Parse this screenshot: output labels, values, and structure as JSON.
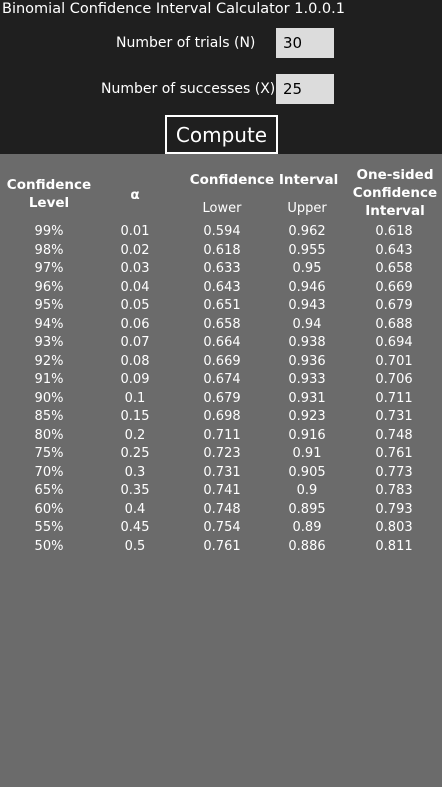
{
  "app": {
    "title": "Binomial Confidence Interval Calculator 1.0.0.1"
  },
  "form": {
    "trials_label": "Number of trials (N)",
    "trials_value": "30",
    "successes_label": "Number of successes (X)",
    "successes_value": "25",
    "compute_label": "Compute"
  },
  "table": {
    "headers": {
      "confidence_level": "Confidence Level",
      "alpha": "α",
      "confidence_interval": "Confidence Interval",
      "lower": "Lower",
      "upper": "Upper",
      "one_sided": "One-sided Confidence Interval"
    },
    "rows": [
      {
        "level": "99%",
        "alpha": "0.01",
        "lower": "0.594",
        "upper": "0.962",
        "one_sided": "0.618"
      },
      {
        "level": "98%",
        "alpha": "0.02",
        "lower": "0.618",
        "upper": "0.955",
        "one_sided": "0.643"
      },
      {
        "level": "97%",
        "alpha": "0.03",
        "lower": "0.633",
        "upper": "0.95",
        "one_sided": "0.658"
      },
      {
        "level": "96%",
        "alpha": "0.04",
        "lower": "0.643",
        "upper": "0.946",
        "one_sided": "0.669"
      },
      {
        "level": "95%",
        "alpha": "0.05",
        "lower": "0.651",
        "upper": "0.943",
        "one_sided": "0.679"
      },
      {
        "level": "94%",
        "alpha": "0.06",
        "lower": "0.658",
        "upper": "0.94",
        "one_sided": "0.688"
      },
      {
        "level": "93%",
        "alpha": "0.07",
        "lower": "0.664",
        "upper": "0.938",
        "one_sided": "0.694"
      },
      {
        "level": "92%",
        "alpha": "0.08",
        "lower": "0.669",
        "upper": "0.936",
        "one_sided": "0.701"
      },
      {
        "level": "91%",
        "alpha": "0.09",
        "lower": "0.674",
        "upper": "0.933",
        "one_sided": "0.706"
      },
      {
        "level": "90%",
        "alpha": "0.1",
        "lower": "0.679",
        "upper": "0.931",
        "one_sided": "0.711"
      },
      {
        "level": "85%",
        "alpha": "0.15",
        "lower": "0.698",
        "upper": "0.923",
        "one_sided": "0.731"
      },
      {
        "level": "80%",
        "alpha": "0.2",
        "lower": "0.711",
        "upper": "0.916",
        "one_sided": "0.748"
      },
      {
        "level": "75%",
        "alpha": "0.25",
        "lower": "0.723",
        "upper": "0.91",
        "one_sided": "0.761"
      },
      {
        "level": "70%",
        "alpha": "0.3",
        "lower": "0.731",
        "upper": "0.905",
        "one_sided": "0.773"
      },
      {
        "level": "65%",
        "alpha": "0.35",
        "lower": "0.741",
        "upper": "0.9",
        "one_sided": "0.783"
      },
      {
        "level": "60%",
        "alpha": "0.4",
        "lower": "0.748",
        "upper": "0.895",
        "one_sided": "0.793"
      },
      {
        "level": "55%",
        "alpha": "0.45",
        "lower": "0.754",
        "upper": "0.89",
        "one_sided": "0.803"
      },
      {
        "level": "50%",
        "alpha": "0.5",
        "lower": "0.761",
        "upper": "0.886",
        "one_sided": "0.811"
      }
    ]
  }
}
